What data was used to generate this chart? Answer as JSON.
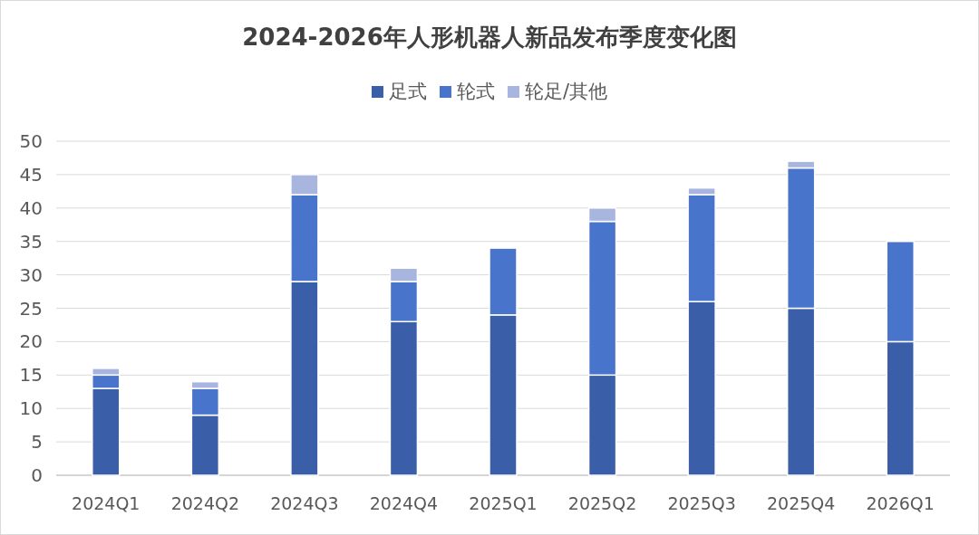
{
  "chart_data": {
    "type": "bar",
    "title": "2024-2026年人形机器人新品发布季度变化图",
    "stacked": true,
    "categories": [
      "2024Q1",
      "2024Q2",
      "2024Q3",
      "2024Q4",
      "2025Q1",
      "2025Q2",
      "2025Q3",
      "2025Q4",
      "2026Q1"
    ],
    "series": [
      {
        "name": "足式",
        "color": "#3a5fa8",
        "values": [
          13,
          9,
          29,
          23,
          24,
          15,
          26,
          25,
          20
        ]
      },
      {
        "name": "轮式",
        "color": "#4874cb",
        "values": [
          2,
          4,
          13,
          6,
          10,
          23,
          16,
          21,
          15
        ]
      },
      {
        "name": "轮足/其他",
        "color": "#a8b5df",
        "values": [
          1,
          1,
          3,
          2,
          0,
          2,
          1,
          1,
          0
        ]
      }
    ],
    "ylim": [
      0,
      50
    ],
    "yticks": [
      0,
      5,
      10,
      15,
      20,
      25,
      30,
      35,
      40,
      45,
      50
    ],
    "grid": "y",
    "legend": "top"
  }
}
